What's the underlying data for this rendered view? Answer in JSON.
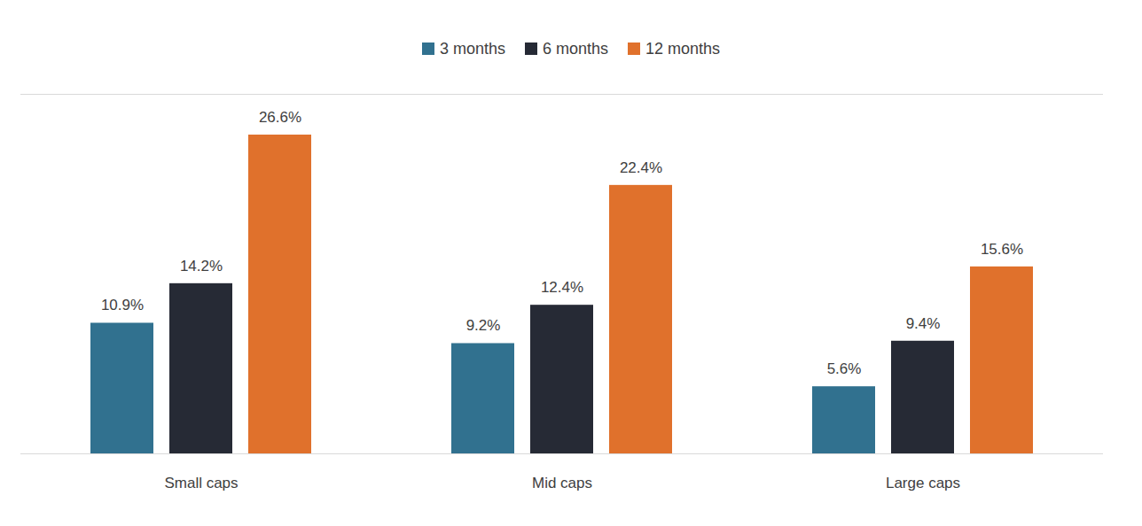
{
  "chart_data": {
    "type": "bar",
    "categories": [
      "Small caps",
      "Mid caps",
      "Large caps"
    ],
    "series": [
      {
        "name": "3 months",
        "color": "#31718f",
        "values": [
          10.9,
          9.2,
          5.6
        ],
        "value_labels": [
          "10.9%",
          "9.2%",
          "5.6%"
        ]
      },
      {
        "name": "6 months",
        "color": "#262a35",
        "values": [
          14.2,
          12.4,
          9.4
        ],
        "value_labels": [
          "14.2%",
          "12.4%",
          "9.4%"
        ]
      },
      {
        "name": "12 months",
        "color": "#e0712c",
        "values": [
          26.6,
          22.4,
          15.6
        ],
        "value_labels": [
          "26.6%",
          "22.4%",
          "15.6%"
        ]
      }
    ],
    "ylim": [
      0,
      30
    ],
    "yticks": [],
    "legend": "top",
    "data_labels": true,
    "tick_labels": "x",
    "grid": false
  }
}
